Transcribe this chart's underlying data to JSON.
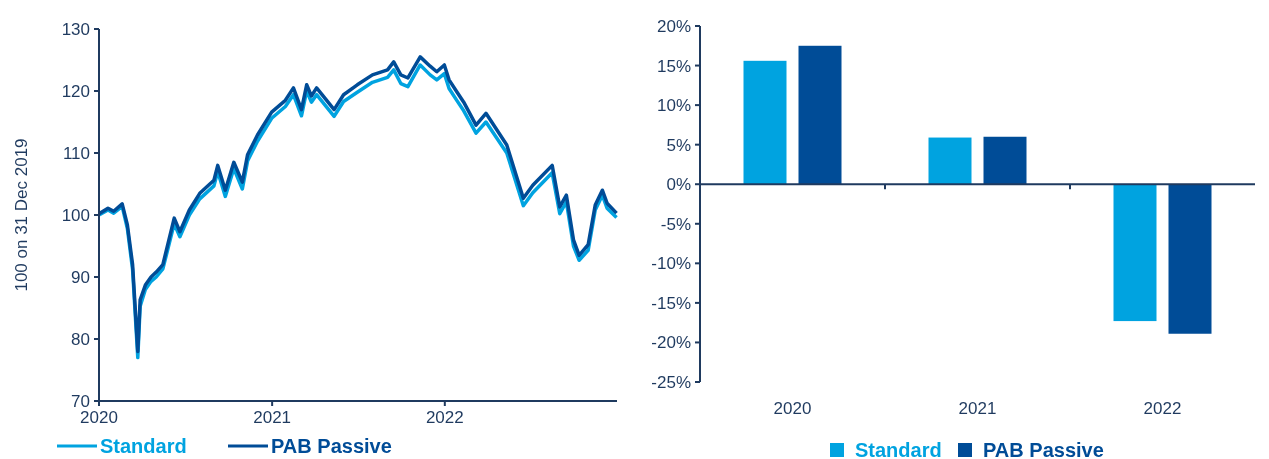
{
  "chart_data": [
    {
      "type": "line",
      "ylabel": "100 on 31 Dec 2019",
      "legend": "bottom",
      "x": [
        "2020-01-01",
        "2020-01-20",
        "2020-02-01",
        "2020-02-19",
        "2020-03-01",
        "2020-03-12",
        "2020-03-23",
        "2020-03-28",
        "2020-04-08",
        "2020-04-20",
        "2020-05-01",
        "2020-05-15",
        "2020-06-08",
        "2020-06-20",
        "2020-07-10",
        "2020-08-01",
        "2020-08-31",
        "2020-09-08",
        "2020-09-24",
        "2020-10-12",
        "2020-10-30",
        "2020-11-10",
        "2020-12-01",
        "2020-12-31",
        "2021-01-29",
        "2021-02-15",
        "2021-03-04",
        "2021-03-15",
        "2021-03-25",
        "2021-04-05",
        "2021-05-12",
        "2021-06-01",
        "2021-06-30",
        "2021-08-01",
        "2021-09-02",
        "2021-09-15",
        "2021-09-30",
        "2021-10-15",
        "2021-11-10",
        "2021-12-01",
        "2021-12-15",
        "2021-12-31",
        "2022-01-10",
        "2022-01-27",
        "2022-02-10",
        "2022-03-08",
        "2022-03-29",
        "2022-05-12",
        "2022-06-16",
        "2022-07-06",
        "2022-08-16",
        "2022-09-01",
        "2022-09-15",
        "2022-09-30",
        "2022-10-12",
        "2022-10-31",
        "2022-11-15",
        "2022-11-30",
        "2022-12-10",
        "2022-12-30"
      ],
      "xlim": [
        "2020-01-01",
        "2022-12-31"
      ],
      "xticks": [
        {
          "value": "2020-01-01",
          "label": "2020"
        },
        {
          "value": "2021-01-01",
          "label": "2021"
        },
        {
          "value": "2022-01-01",
          "label": "2022"
        }
      ],
      "ylim": [
        70,
        130
      ],
      "yticks": [
        70,
        80,
        90,
        100,
        110,
        120,
        130
      ],
      "series": [
        {
          "name": "Standard",
          "color": "#00a3e0",
          "values": [
            100,
            100.8,
            100.3,
            101.4,
            97.8,
            91.2,
            77,
            85.3,
            88,
            89.3,
            90,
            91.3,
            98.6,
            96.5,
            100,
            102.6,
            104.7,
            107,
            103,
            107.5,
            104.2,
            108.7,
            111.9,
            115.6,
            117.5,
            119.4,
            116,
            120,
            118.2,
            119.4,
            115.9,
            118.3,
            119.8,
            121.4,
            122.2,
            123.4,
            121.2,
            120.7,
            124.2,
            122.6,
            121.8,
            122.8,
            120.4,
            118.4,
            116.8,
            113.2,
            115,
            110,
            101.5,
            103.6,
            106.8,
            100.2,
            102.1,
            95,
            92.7,
            94.3,
            100.8,
            103.2,
            101.1,
            99.6
          ]
        },
        {
          "name": "PAB Passive",
          "color": "#004c97",
          "values": [
            100.2,
            101.1,
            100.6,
            101.8,
            98.4,
            92,
            78,
            86.3,
            88.7,
            90,
            90.8,
            92,
            99.5,
            97.3,
            100.8,
            103.5,
            105.6,
            108,
            104,
            108.5,
            105.3,
            109.7,
            112.9,
            116.6,
            118.5,
            120.5,
            117,
            121,
            119.2,
            120.5,
            117,
            119.4,
            121,
            122.6,
            123.4,
            124.7,
            122.6,
            122.1,
            125.5,
            124,
            123.1,
            124.2,
            121.8,
            119.8,
            118.2,
            114.5,
            116.4,
            111.3,
            102.7,
            104.8,
            108,
            101.3,
            103.2,
            96,
            93.5,
            95.2,
            101.6,
            104,
            101.9,
            100.3
          ]
        }
      ]
    },
    {
      "type": "bar",
      "legend": "bottom",
      "categories": [
        "2020",
        "2021",
        "2022"
      ],
      "ylim": [
        -25,
        20
      ],
      "yticks": [
        {
          "value": -25,
          "label": "-25%"
        },
        {
          "value": -20,
          "label": "-20%"
        },
        {
          "value": -15,
          "label": "-15%"
        },
        {
          "value": -10,
          "label": "-10%"
        },
        {
          "value": -5,
          "label": "-5%"
        },
        {
          "value": 0,
          "label": "0%"
        },
        {
          "value": 5,
          "label": "5%"
        },
        {
          "value": 10,
          "label": "10%"
        },
        {
          "value": 15,
          "label": "15%"
        },
        {
          "value": 20,
          "label": "20%"
        }
      ],
      "series": [
        {
          "name": "Standard",
          "color": "#00a3e0",
          "values": [
            15.6,
            5.9,
            -17.3
          ]
        },
        {
          "name": "PAB Passive",
          "color": "#004c97",
          "values": [
            17.5,
            6,
            -18.9
          ]
        }
      ]
    }
  ]
}
